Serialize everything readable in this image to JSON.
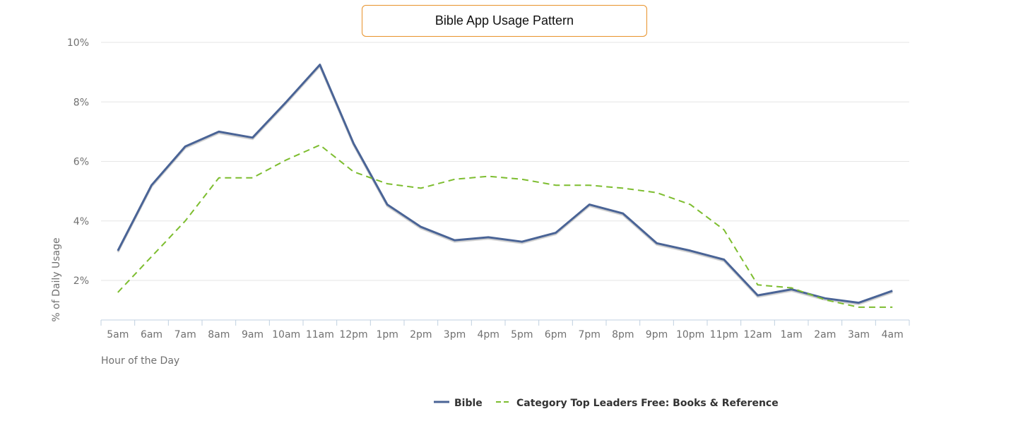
{
  "chart_data": {
    "type": "line",
    "title": "Bible App Usage Pattern",
    "xlabel": "Hour of the Day",
    "ylabel": "% of Daily Usage",
    "categories": [
      "5am",
      "6am",
      "7am",
      "8am",
      "9am",
      "10am",
      "11am",
      "12pm",
      "1pm",
      "2pm",
      "3pm",
      "4pm",
      "5pm",
      "6pm",
      "7pm",
      "8pm",
      "9pm",
      "10pm",
      "11pm",
      "12am",
      "1am",
      "2am",
      "3am",
      "4am"
    ],
    "y_ticks": [
      2,
      4,
      6,
      8,
      10
    ],
    "y_tick_labels": [
      "2%",
      "4%",
      "6%",
      "8%",
      "10%"
    ],
    "ylim": [
      0.7,
      10
    ],
    "grid": true,
    "legend_position": "bottom",
    "series": [
      {
        "name": "Bible",
        "color": "#4a6496",
        "dash": "solid",
        "values": [
          3.0,
          5.2,
          6.5,
          7.0,
          6.8,
          8.0,
          9.25,
          6.6,
          4.55,
          3.8,
          3.35,
          3.45,
          3.3,
          3.6,
          4.55,
          4.25,
          3.25,
          3.0,
          2.7,
          1.5,
          1.7,
          1.4,
          1.25,
          1.65
        ]
      },
      {
        "name": "Category Top Leaders Free: Books & Reference",
        "color": "#7dbd2f",
        "dash": "dashed",
        "values": [
          1.6,
          2.8,
          4.0,
          5.45,
          5.45,
          6.05,
          6.55,
          5.65,
          5.25,
          5.1,
          5.4,
          5.5,
          5.4,
          5.2,
          5.2,
          5.1,
          4.95,
          4.55,
          3.7,
          1.85,
          1.75,
          1.35,
          1.1,
          1.1
        ]
      }
    ]
  }
}
